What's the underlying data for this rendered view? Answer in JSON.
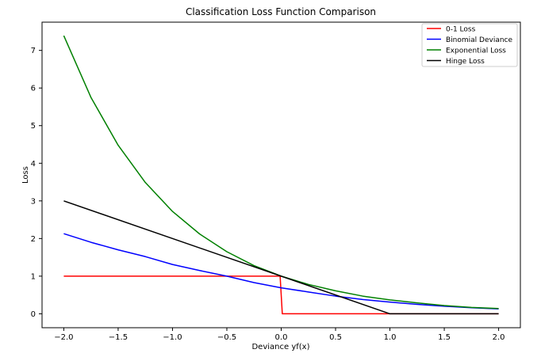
{
  "chart_data": {
    "type": "line",
    "title": "Classification Loss Function Comparison",
    "xlabel": "Deviance yf(x)",
    "ylabel": "Loss",
    "xlim": [
      -2.2,
      2.2
    ],
    "ylim": [
      -0.37,
      7.75
    ],
    "xticks": [
      -2.0,
      -1.5,
      -1.0,
      -0.5,
      0.0,
      0.5,
      1.0,
      1.5,
      2.0
    ],
    "xtick_labels": [
      "−2.0",
      "−1.5",
      "−1.0",
      "−0.5",
      "0.0",
      "0.5",
      "1.0",
      "1.5",
      "2.0"
    ],
    "yticks": [
      0,
      1,
      2,
      3,
      4,
      5,
      6,
      7
    ],
    "ytick_labels": [
      "0",
      "1",
      "2",
      "3",
      "4",
      "5",
      "6",
      "7"
    ],
    "grid": false,
    "legend_position": "top-right",
    "series": [
      {
        "name": "0-1 Loss",
        "color": "#ff0000",
        "x": [
          -2.0,
          -1.5,
          -1.0,
          -0.5,
          -0.01,
          0.01,
          0.5,
          1.0,
          1.5,
          2.0
        ],
        "y": [
          1,
          1,
          1,
          1,
          1,
          0,
          0,
          0,
          0,
          0
        ]
      },
      {
        "name": "Binomial Deviance",
        "color": "#0000ff",
        "x": [
          -2.0,
          -1.75,
          -1.5,
          -1.25,
          -1.0,
          -0.75,
          -0.5,
          -0.25,
          0.0,
          0.25,
          0.5,
          0.75,
          1.0,
          1.25,
          1.5,
          1.75,
          2.0
        ],
        "y": [
          2.13,
          1.9,
          1.7,
          1.52,
          1.31,
          1.15,
          1.0,
          0.83,
          0.69,
          0.58,
          0.47,
          0.38,
          0.31,
          0.25,
          0.2,
          0.16,
          0.13
        ]
      },
      {
        "name": "Exponential Loss",
        "color": "#008000",
        "x": [
          -2.0,
          -1.75,
          -1.5,
          -1.25,
          -1.0,
          -0.75,
          -0.5,
          -0.25,
          0.0,
          0.25,
          0.5,
          0.75,
          1.0,
          1.25,
          1.5,
          1.75,
          2.0
        ],
        "y": [
          7.39,
          5.75,
          4.48,
          3.49,
          2.72,
          2.12,
          1.65,
          1.28,
          1.0,
          0.78,
          0.61,
          0.47,
          0.37,
          0.29,
          0.22,
          0.17,
          0.14
        ]
      },
      {
        "name": "Hinge Loss",
        "color": "#000000",
        "x": [
          -2.0,
          1.0,
          2.0
        ],
        "y": [
          3.0,
          0.0,
          0.0
        ]
      }
    ]
  }
}
